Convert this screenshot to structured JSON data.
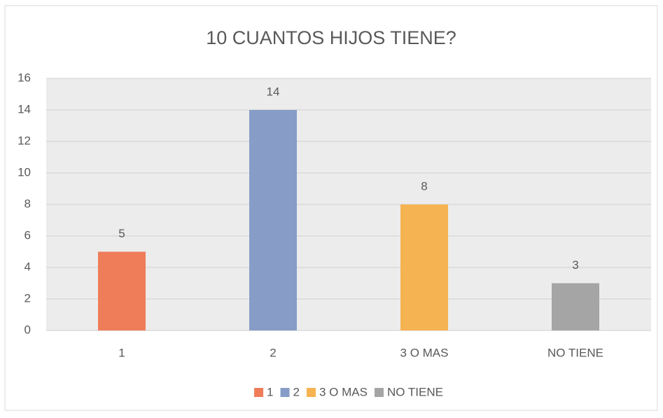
{
  "chart_data": {
    "type": "bar",
    "title": "10 CUANTOS HIJOS TIENE?",
    "categories": [
      "1",
      "2",
      "3 O MAS",
      "NO TIENE"
    ],
    "values": [
      5,
      14,
      8,
      3
    ],
    "colors": [
      "#ef7d5a",
      "#879dc7",
      "#f6b352",
      "#a5a5a5"
    ],
    "ylim": [
      0,
      16
    ],
    "yticks": [
      0,
      2,
      4,
      6,
      8,
      10,
      12,
      14,
      16
    ],
    "grid": true,
    "legend": "bottom"
  }
}
